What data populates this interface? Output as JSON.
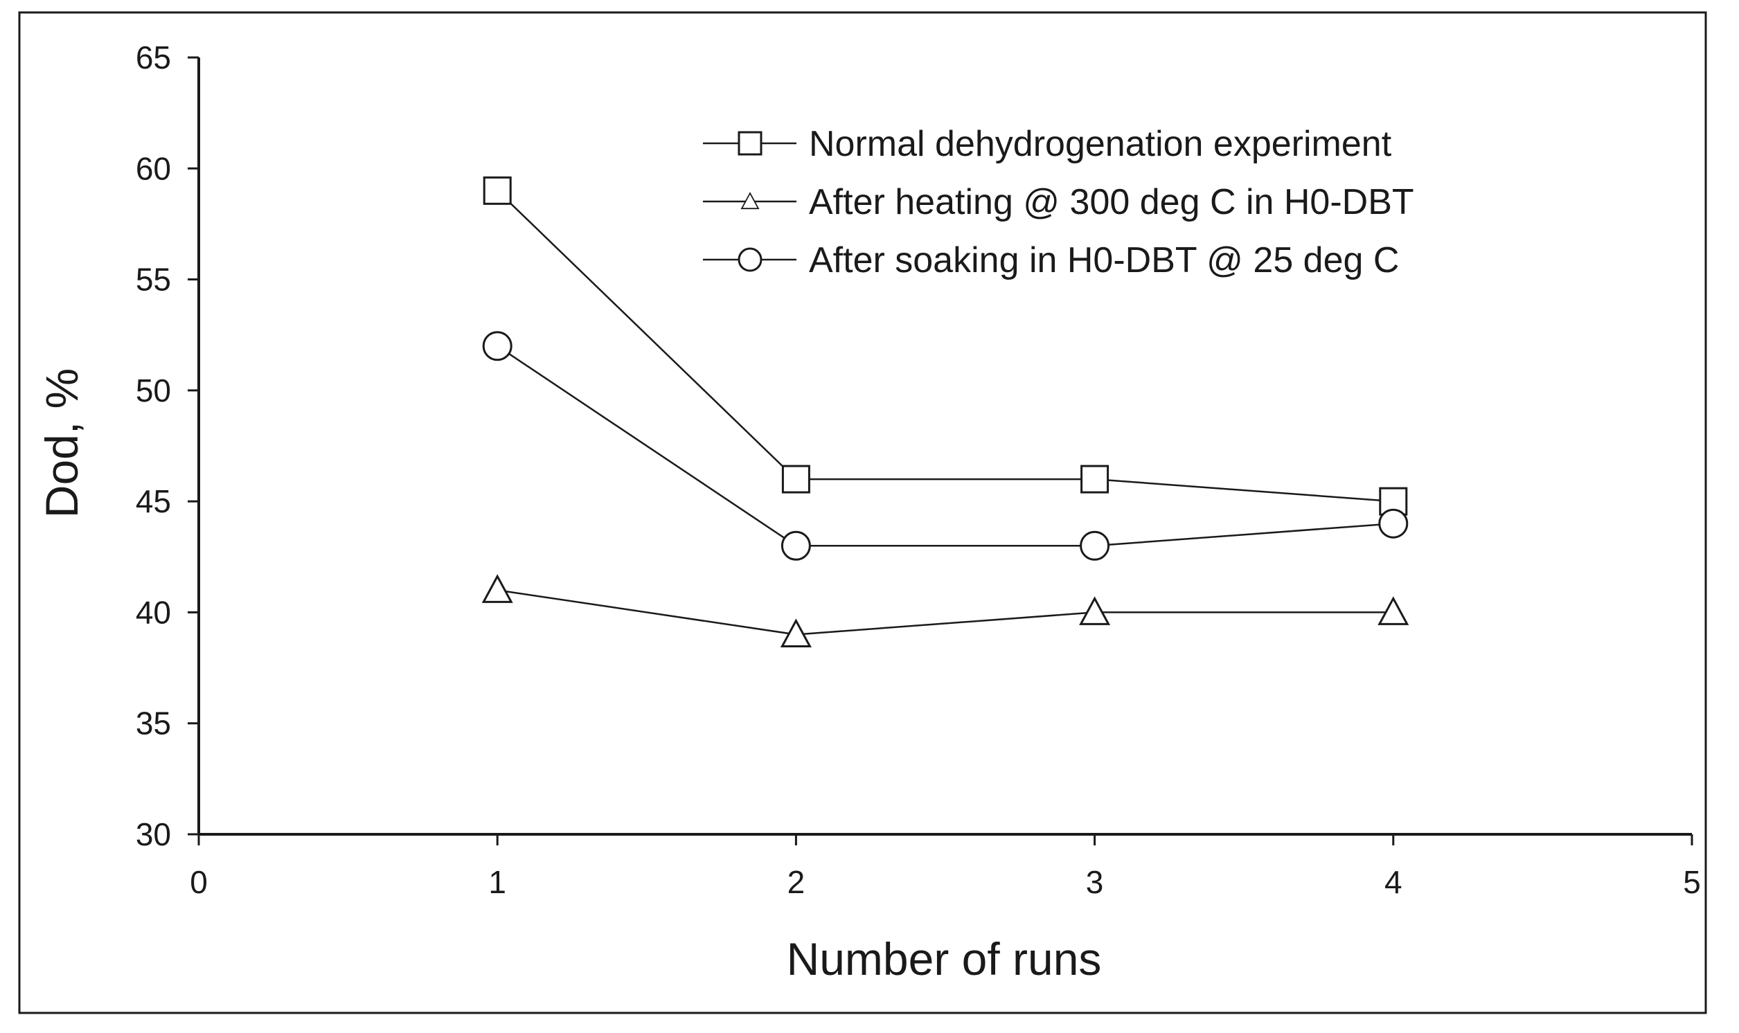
{
  "chart_data": {
    "type": "line",
    "title": "",
    "xlabel": "Number of runs",
    "ylabel": "Dod, %",
    "xlim": [
      0,
      5
    ],
    "ylim": [
      30,
      65
    ],
    "xticks": [
      0,
      1,
      2,
      3,
      4,
      5
    ],
    "yticks": [
      30,
      35,
      40,
      45,
      50,
      55,
      60,
      65
    ],
    "grid": false,
    "legend_position": "top-right",
    "series": [
      {
        "name": "Normal dehydrogenation experiment",
        "marker": "square",
        "x": [
          1,
          2,
          3,
          4
        ],
        "y": [
          59,
          46,
          46,
          45
        ]
      },
      {
        "name": "After heating @ 300 deg C in H0-DBT",
        "marker": "triangle",
        "x": [
          1,
          2,
          3,
          4
        ],
        "y": [
          41,
          39,
          40,
          40
        ]
      },
      {
        "name": "After soaking in H0-DBT @ 25 deg C",
        "marker": "circle",
        "x": [
          1,
          2,
          3,
          4
        ],
        "y": [
          52,
          43,
          43,
          44
        ]
      }
    ],
    "colors": {
      "line": "#1a1a1a",
      "marker_fill": "#ffffff",
      "frame": "#1a1a1a"
    }
  }
}
